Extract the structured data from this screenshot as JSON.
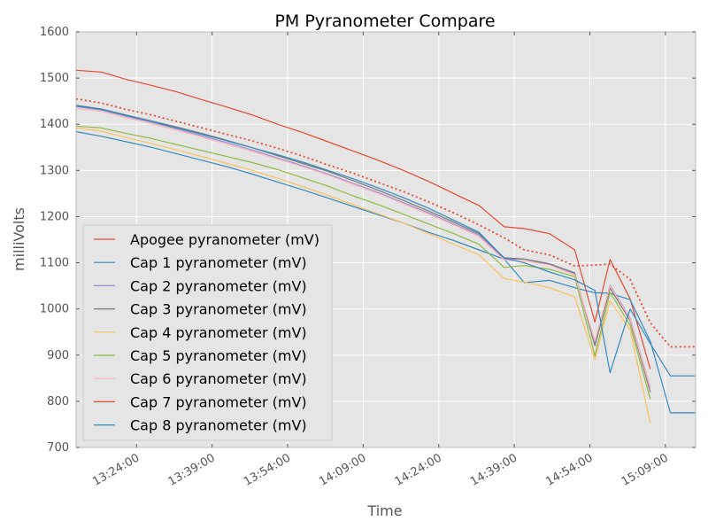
{
  "chart_data": {
    "type": "line",
    "title": "PM Pyranometer Compare",
    "xlabel": "Time",
    "ylabel": "milliVolts",
    "ylim": [
      700,
      1600
    ],
    "yticks": [
      "700",
      "800",
      "900",
      "1000",
      "1100",
      "1200",
      "1300",
      "1400",
      "1500",
      "1600"
    ],
    "xlim": [
      "13:12:00",
      "15:15:00"
    ],
    "xticks": [
      "13:24:00",
      "13:39:00",
      "13:54:00",
      "14:09:00",
      "14:24:00",
      "14:39:00",
      "14:54:00",
      "15:09:00"
    ],
    "grid": true,
    "legend_position": "lower-left",
    "x": [
      "13:12:00",
      "13:17:00",
      "13:22:00",
      "13:27:00",
      "13:32:00",
      "13:37:00",
      "13:42:00",
      "13:47:00",
      "13:52:00",
      "13:57:00",
      "14:02:00",
      "14:07:00",
      "14:12:00",
      "14:17:00",
      "14:22:00",
      "14:27:00",
      "14:32:00",
      "14:37:00",
      "14:41:00",
      "14:46:00",
      "14:51:00",
      "14:55:00",
      "14:58:00",
      "15:02:00",
      "15:06:00",
      "15:10:00",
      "15:15:00"
    ],
    "series": [
      {
        "name": "Apogee pyranometer (mV)",
        "color": "#e24a33",
        "style": "solid",
        "values": [
          1517,
          1513,
          1497,
          1484,
          1470,
          1453,
          1437,
          1420,
          1400,
          1382,
          1362,
          1342,
          1322,
          1300,
          1276,
          1250,
          1224,
          1178,
          1174,
          1163,
          1128,
          972,
          1107,
          1022,
          870,
          null,
          null
        ]
      },
      {
        "name": "Cap 1 pyranometer (mV)",
        "color": "#348abd",
        "style": "solid",
        "values": [
          1384,
          1374,
          1362,
          1350,
          1336,
          1322,
          1308,
          1292,
          1275,
          1258,
          1240,
          1222,
          1204,
          1186,
          1166,
          1148,
          1128,
          1108,
          1057,
          1062,
          1046,
          1035,
          1034,
          1020,
          930,
          775,
          775
        ]
      },
      {
        "name": "Cap 2 pyranometer (mV)",
        "color": "#988ed5",
        "style": "solid",
        "values": [
          1438,
          1431,
          1417,
          1404,
          1390,
          1375,
          1360,
          1344,
          1327,
          1310,
          1292,
          1272,
          1252,
          1230,
          1208,
          1184,
          1160,
          1108,
          1108,
          1096,
          1076,
          925,
          1052,
          980,
          830,
          null,
          null
        ]
      },
      {
        "name": "Cap 3 pyranometer (mV)",
        "color": "#777777",
        "style": "solid",
        "values": [
          1441,
          1433,
          1420,
          1407,
          1394,
          1380,
          1365,
          1349,
          1332,
          1315,
          1298,
          1278,
          1257,
          1235,
          1212,
          1188,
          1163,
          1111,
          1108,
          1098,
          1078,
          920,
          1045,
          975,
          820,
          null,
          null
        ]
      },
      {
        "name": "Cap 4 pyranometer (mV)",
        "color": "#fbc15e",
        "style": "solid",
        "values": [
          1392,
          1385,
          1371,
          1358,
          1344,
          1330,
          1315,
          1300,
          1283,
          1265,
          1246,
          1226,
          1206,
          1186,
          1163,
          1140,
          1117,
          1066,
          1058,
          1046,
          1026,
          890,
          1018,
          955,
          752,
          null,
          null
        ]
      },
      {
        "name": "Cap 5 pyranometer (mV)",
        "color": "#8eba42",
        "style": "solid",
        "values": [
          1396,
          1392,
          1380,
          1369,
          1356,
          1343,
          1330,
          1317,
          1302,
          1284,
          1266,
          1245,
          1226,
          1205,
          1184,
          1163,
          1140,
          1090,
          1094,
          1086,
          1070,
          898,
          1036,
          965,
          805,
          null,
          null
        ]
      },
      {
        "name": "Cap 6 pyranometer (mV)",
        "color": "#ffb5b8",
        "style": "solid",
        "values": [
          1434,
          1428,
          1414,
          1401,
          1387,
          1372,
          1357,
          1341,
          1325,
          1308,
          1290,
          1270,
          1250,
          1228,
          1205,
          1182,
          1157,
          1106,
          1104,
          1095,
          1074,
          930,
          1050,
          978,
          828,
          null,
          null
        ]
      },
      {
        "name": "Cap 7 pyranometer (mV)",
        "color": "#e24a33",
        "style": "dotted",
        "values": [
          1455,
          1446,
          1432,
          1420,
          1406,
          1392,
          1378,
          1364,
          1348,
          1331,
          1312,
          1294,
          1274,
          1254,
          1232,
          1208,
          1182,
          1154,
          1128,
          1117,
          1093,
          1095,
          1097,
          1064,
          970,
          918,
          918
        ]
      },
      {
        "name": "Cap 8 pyranometer (mV)",
        "color": "#348abd",
        "style": "solid",
        "values": [
          1440,
          1432,
          1419,
          1406,
          1392,
          1378,
          1364,
          1349,
          1334,
          1318,
          1300,
          1282,
          1262,
          1241,
          1218,
          1192,
          1166,
          1110,
          1100,
          1080,
          1063,
          1040,
          862,
          1000,
          925,
          855,
          855
        ]
      }
    ]
  }
}
